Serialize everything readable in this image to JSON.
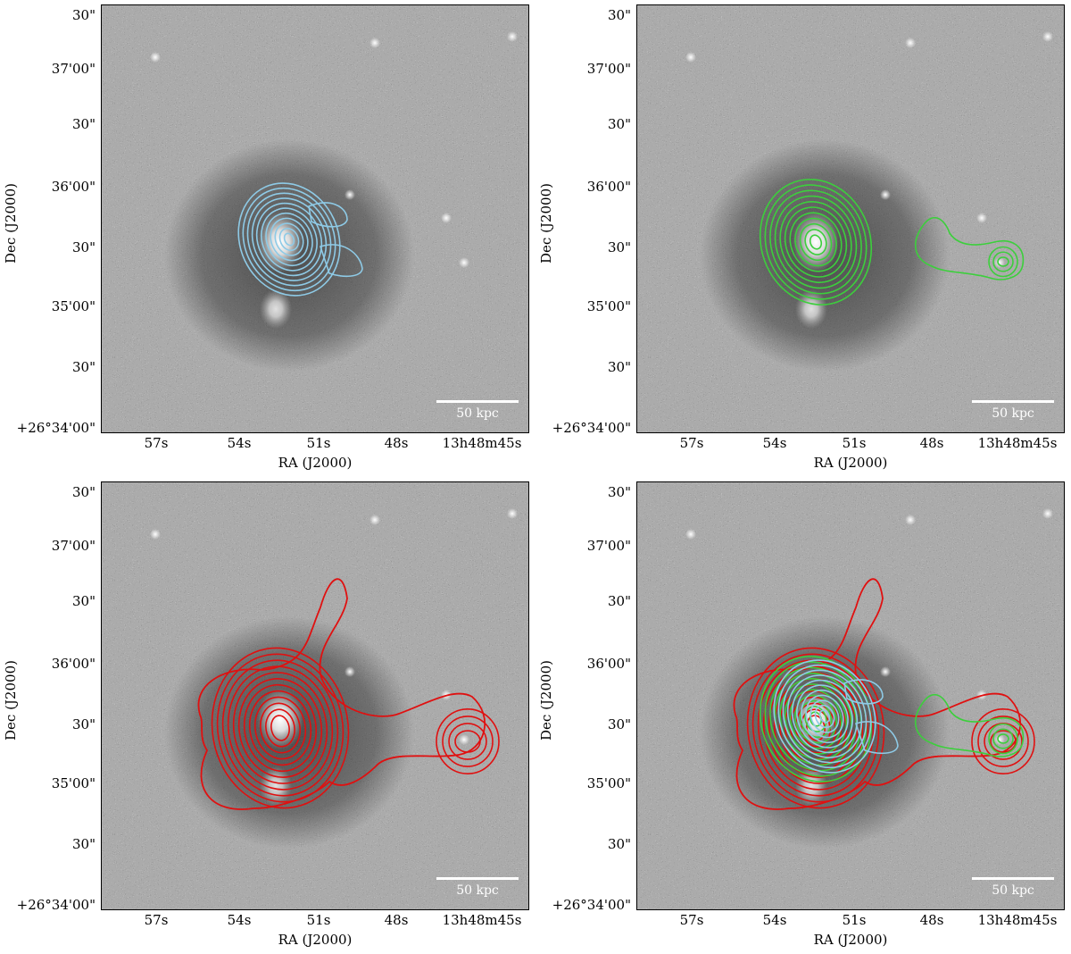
{
  "axes": {
    "xlabel": "RA (J2000)",
    "ylabel": "Dec (J2000)",
    "x_ticks": [
      "57s",
      "54s",
      "51s",
      "48s",
      "13h48m45s"
    ],
    "y_ticks": [
      "30\"",
      "37'00\"",
      "30\"",
      "36'00\"",
      "30\"",
      "35'00\"",
      "30\"",
      "+26°34'00\""
    ]
  },
  "scale_bar": {
    "label": "50 kpc"
  },
  "colors": {
    "contour_blue": "#8ecae6",
    "contour_green": "#3ccf3c",
    "contour_red": "#e01010",
    "background": "#6d6d6d"
  },
  "panels": [
    {
      "id": "top-left",
      "contours": [
        "blue"
      ]
    },
    {
      "id": "top-right",
      "contours": [
        "green"
      ]
    },
    {
      "id": "bottom-left",
      "contours": [
        "red"
      ]
    },
    {
      "id": "bottom-right",
      "contours": [
        "red",
        "green",
        "blue"
      ]
    }
  ]
}
